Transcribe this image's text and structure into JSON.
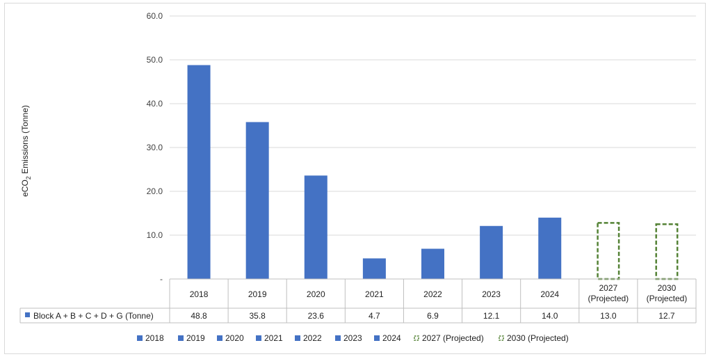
{
  "chart_data": {
    "type": "bar",
    "ylabel_prefix": "eCO",
    "ylabel_sub": "2",
    "ylabel_suffix": " Emissions (Tonne)",
    "ylim": [
      0,
      60
    ],
    "yticks": [
      "-",
      "10.0",
      "20.0",
      "30.0",
      "40.0",
      "50.0",
      "60.0"
    ],
    "grid": true,
    "categories": [
      {
        "line1": "2018",
        "line2": ""
      },
      {
        "line1": "2019",
        "line2": ""
      },
      {
        "line1": "2020",
        "line2": ""
      },
      {
        "line1": "2021",
        "line2": ""
      },
      {
        "line1": "2022",
        "line2": ""
      },
      {
        "line1": "2023",
        "line2": ""
      },
      {
        "line1": "2024",
        "line2": ""
      },
      {
        "line1": "2027",
        "line2": "(Projected)"
      },
      {
        "line1": "2030",
        "line2": "(Projected)"
      }
    ],
    "values": [
      48.8,
      35.8,
      23.6,
      4.7,
      6.9,
      12.1,
      14.0,
      13.0,
      12.7
    ],
    "value_labels": [
      "48.8",
      "35.8",
      "23.6",
      "4.7",
      "6.9",
      "12.1",
      "14.0",
      "13.0",
      "12.7"
    ],
    "projected": [
      false,
      false,
      false,
      false,
      false,
      false,
      false,
      true,
      true
    ],
    "series_name": "Block A + B + C + D + G (Tonne)",
    "legend_position": "bottom",
    "legend": [
      "2018",
      "2019",
      "2020",
      "2021",
      "2022",
      "2023",
      "2024",
      "2027 (Projected)",
      "2030 (Projected)"
    ],
    "colors": {
      "actual": "#4472c4",
      "projected": "#548235",
      "grid": "#d9d9d9",
      "table_border": "#bfbfbf"
    }
  }
}
